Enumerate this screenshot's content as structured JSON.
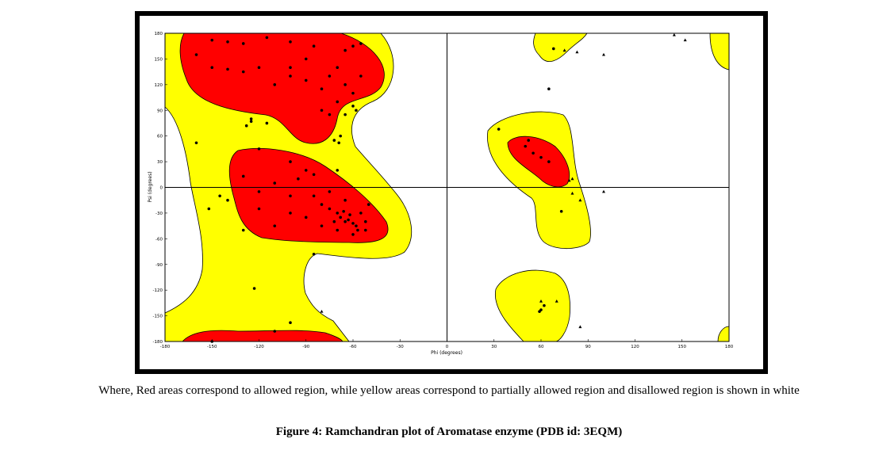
{
  "chart_data": {
    "type": "scatter",
    "x_label": "Phi (degrees)",
    "y_label": "Psi (degrees)",
    "xlim": [
      -180,
      180
    ],
    "ylim": [
      -180,
      180
    ],
    "xticks": [
      -180,
      -150,
      -120,
      -90,
      -60,
      -30,
      0,
      30,
      60,
      90,
      120,
      150,
      180
    ],
    "yticks": [
      -180,
      -150,
      -120,
      -90,
      -60,
      -30,
      0,
      30,
      60,
      90,
      120,
      150,
      180
    ],
    "series": [
      {
        "marker": "circle",
        "color": "#000000",
        "x": [
          -160,
          -150,
          -140,
          -130,
          -115,
          -100,
          -85,
          -65,
          -60,
          -55,
          -150,
          -140,
          -130,
          -120,
          -110,
          -100,
          -90,
          -80,
          -75,
          -70,
          -65,
          -60,
          -55,
          -70,
          -80,
          -75,
          -65,
          -60,
          -125,
          -125,
          -115,
          -128,
          -58,
          -68,
          -72,
          -69,
          -100,
          -90,
          -160,
          -120,
          -100,
          -90,
          -85,
          -95,
          -110,
          -130,
          -120,
          -100,
          -80,
          -75,
          -70,
          -68,
          -65,
          -63,
          -60,
          -58,
          -62,
          -66,
          -72,
          -55,
          -57,
          -52,
          -60,
          -70,
          -80,
          -90,
          -100,
          -110,
          -85,
          -75,
          -65,
          -50,
          -52,
          -120,
          -140,
          -145,
          -152,
          -130,
          -85,
          -123,
          -110,
          -100,
          -150,
          -70,
          33,
          50,
          55,
          60,
          65,
          52,
          65,
          73,
          60,
          62,
          59,
          68
        ],
        "y": [
          155,
          172,
          170,
          168,
          175,
          170,
          165,
          160,
          165,
          168,
          140,
          138,
          135,
          140,
          120,
          130,
          125,
          115,
          130,
          140,
          120,
          110,
          130,
          100,
          90,
          85,
          85,
          95,
          80,
          77,
          75,
          72,
          90,
          60,
          55,
          52,
          140,
          150,
          52,
          45,
          30,
          20,
          15,
          10,
          5,
          13,
          -5,
          -10,
          -20,
          -25,
          -30,
          -35,
          -40,
          -38,
          -42,
          -45,
          -32,
          -28,
          -40,
          -30,
          -50,
          -40,
          -55,
          -50,
          -45,
          -35,
          -30,
          -45,
          -10,
          -5,
          -15,
          -20,
          -50,
          -25,
          -15,
          -10,
          -25,
          -50,
          -78,
          -118,
          -168,
          -158,
          -180,
          20,
          68,
          48,
          40,
          35,
          30,
          55,
          115,
          -28,
          -143,
          -138,
          -145,
          162
        ]
      },
      {
        "marker": "triangle",
        "color": "#000000",
        "x": [
          -80,
          75,
          83,
          100,
          145,
          152,
          80,
          78,
          80,
          85,
          100,
          60,
          70,
          85
        ],
        "y": [
          -145,
          160,
          158,
          155,
          178,
          172,
          10,
          8,
          -7,
          -15,
          -5,
          -133,
          -133,
          -163
        ]
      }
    ]
  },
  "caption": {
    "note": "Where, Red areas correspond to allowed region, while yellow areas correspond to partially allowed region and disallowed region is shown in white",
    "figure": "Figure 4: Ramchandran plot of Aromatase enzyme (PDB id: 3EQM)"
  }
}
